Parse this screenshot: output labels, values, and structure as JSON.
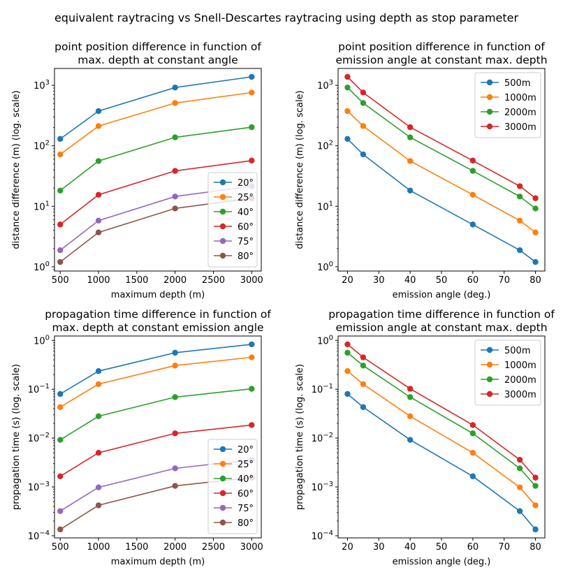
{
  "suptitle": "equivalent raytracing vs Snell-Descartes raytracing using depth as stop parameter",
  "colors": [
    "#1f77b4",
    "#ff7f0e",
    "#2ca02c",
    "#d62728",
    "#9467bd",
    "#8c564b"
  ],
  "chart_data": [
    {
      "type": "line",
      "title": [
        "point position difference in function of",
        "max. depth at constant angle"
      ],
      "xlabel": "maximum depth (m)",
      "ylabel": "distance difference (m) (log. scale)",
      "yscale": "log",
      "xlim": [
        425,
        3125
      ],
      "ylim": [
        0.85,
        1900
      ],
      "xticks": [
        500,
        1000,
        1500,
        2000,
        2500,
        3000
      ],
      "yticks": [
        1,
        10,
        100,
        1000
      ],
      "yticklabels": [
        "10^0",
        "10^1",
        "10^2",
        "10^3"
      ],
      "legend_position": "lower-right",
      "x": [
        500,
        1000,
        2000,
        3000
      ],
      "series": [
        {
          "name": "20°",
          "values": [
            130,
            375,
            920,
            1380
          ]
        },
        {
          "name": "25°",
          "values": [
            72,
            212,
            510,
            760
          ]
        },
        {
          "name": "40°",
          "values": [
            18.2,
            56,
            138,
            203
          ]
        },
        {
          "name": "60°",
          "values": [
            5.0,
            15.5,
            38.5,
            57
          ]
        },
        {
          "name": "75°",
          "values": [
            1.88,
            5.8,
            14.5,
            21.5
          ]
        },
        {
          "name": "80°",
          "values": [
            1.2,
            3.7,
            9.2,
            13.6
          ]
        }
      ]
    },
    {
      "type": "line",
      "title": [
        "point position difference in function of",
        "emission angle at constant max. depth"
      ],
      "xlabel": "emission angle (deg.)",
      "ylabel": "distance difference (m) (log. scale)",
      "yscale": "log",
      "xlim": [
        17,
        83
      ],
      "ylim": [
        0.85,
        1900
      ],
      "xticks": [
        20,
        30,
        40,
        50,
        60,
        70,
        80
      ],
      "yticks": [
        1,
        10,
        100,
        1000
      ],
      "yticklabels": [
        "10^0",
        "10^1",
        "10^2",
        "10^3"
      ],
      "legend_position": "upper-right",
      "x": [
        20,
        25,
        40,
        60,
        75,
        80
      ],
      "series": [
        {
          "name": "500m",
          "values": [
            130,
            72,
            18.2,
            5.0,
            1.88,
            1.2
          ]
        },
        {
          "name": "1000m",
          "values": [
            375,
            212,
            56,
            15.5,
            5.8,
            3.7
          ]
        },
        {
          "name": "2000m",
          "values": [
            920,
            510,
            138,
            38.5,
            14.5,
            9.2
          ]
        },
        {
          "name": "3000m",
          "values": [
            1380,
            760,
            203,
            57,
            21.5,
            13.6
          ]
        }
      ]
    },
    {
      "type": "line",
      "title": [
        "propagation time difference in function of",
        "max. depth at constant emission angle"
      ],
      "xlabel": "maximum depth (m)",
      "ylabel": "propagation time (s) (log. scale)",
      "yscale": "log",
      "xlim": [
        425,
        3125
      ],
      "ylim": [
        9.05e-05,
        1.23
      ],
      "xticks": [
        500,
        1000,
        1500,
        2000,
        2500,
        3000
      ],
      "yticks": [
        0.0001,
        0.001,
        0.01,
        0.1,
        1
      ],
      "yticklabels": [
        "10^-4",
        "10^-3",
        "10^-2",
        "10^-1",
        "10^0"
      ],
      "legend_position": "lower-right",
      "x": [
        500,
        1000,
        2000,
        3000
      ],
      "series": [
        {
          "name": "20°",
          "values": [
            0.08,
            0.235,
            0.56,
            0.83
          ]
        },
        {
          "name": "25°",
          "values": [
            0.043,
            0.127,
            0.305,
            0.45
          ]
        },
        {
          "name": "40°",
          "values": [
            0.0092,
            0.028,
            0.069,
            0.102
          ]
        },
        {
          "name": "60°",
          "values": [
            0.00165,
            0.005,
            0.0125,
            0.0185
          ]
        },
        {
          "name": "75°",
          "values": [
            0.00032,
            0.00098,
            0.0024,
            0.0036
          ]
        },
        {
          "name": "80°",
          "values": [
            0.000135,
            0.00042,
            0.00105,
            0.00155
          ]
        }
      ]
    },
    {
      "type": "line",
      "title": [
        "propagation time difference in function of",
        "emission angle at constant max. depth"
      ],
      "xlabel": "emission angle (deg.)",
      "ylabel": "propagation time (s) (log. scale)",
      "yscale": "log",
      "xlim": [
        17,
        83
      ],
      "ylim": [
        9.05e-05,
        1.23
      ],
      "xticks": [
        20,
        30,
        40,
        50,
        60,
        70,
        80
      ],
      "yticks": [
        0.0001,
        0.001,
        0.01,
        0.1,
        1
      ],
      "yticklabels": [
        "10^-4",
        "10^-3",
        "10^-2",
        "10^-1",
        "10^0"
      ],
      "legend_position": "upper-right",
      "x": [
        20,
        25,
        40,
        60,
        75,
        80
      ],
      "series": [
        {
          "name": "500m",
          "values": [
            0.08,
            0.043,
            0.0092,
            0.00165,
            0.00032,
            0.000135
          ]
        },
        {
          "name": "1000m",
          "values": [
            0.235,
            0.127,
            0.028,
            0.005,
            0.00098,
            0.00042
          ]
        },
        {
          "name": "2000m",
          "values": [
            0.56,
            0.305,
            0.069,
            0.0125,
            0.0024,
            0.00105
          ]
        },
        {
          "name": "3000m",
          "values": [
            0.83,
            0.45,
            0.102,
            0.0185,
            0.0036,
            0.00155
          ]
        }
      ]
    }
  ]
}
